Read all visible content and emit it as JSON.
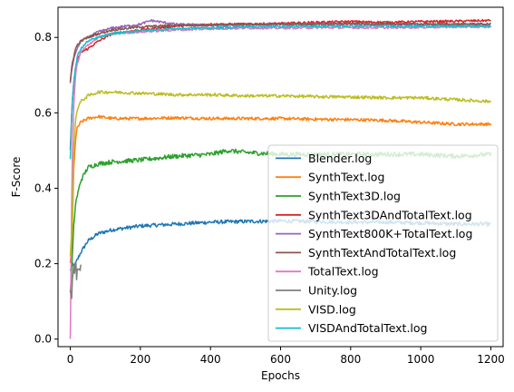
{
  "chart_data": {
    "type": "line",
    "title": "",
    "xlabel": "Epochs",
    "ylabel": "F-Score",
    "xlim": [
      -35,
      1235
    ],
    "ylim": [
      -0.02,
      0.88
    ],
    "xticks": [
      0,
      200,
      400,
      600,
      800,
      1000,
      1200
    ],
    "yticks": [
      0.0,
      0.2,
      0.4,
      0.6,
      0.8
    ],
    "xtick_labels": [
      "0",
      "200",
      "400",
      "600",
      "800",
      "1000",
      "1200"
    ],
    "ytick_labels": [
      "0.0",
      "0.2",
      "0.4",
      "0.6",
      "0.8"
    ],
    "legend_position": "lower-right",
    "grid": false,
    "series": [
      {
        "name": "Blender.log",
        "color": "#1f77b4",
        "noise": 0.005,
        "x": [
          0,
          5,
          10,
          15,
          20,
          30,
          50,
          80,
          120,
          160,
          200,
          300,
          400,
          500,
          600,
          700,
          800,
          900,
          1000,
          1100,
          1200
        ],
        "y": [
          0.18,
          0.2,
          0.19,
          0.2,
          0.21,
          0.23,
          0.26,
          0.28,
          0.29,
          0.295,
          0.3,
          0.305,
          0.31,
          0.312,
          0.313,
          0.312,
          0.31,
          0.31,
          0.308,
          0.305,
          0.305
        ]
      },
      {
        "name": "SynthText.log",
        "color": "#ff7f0e",
        "noise": 0.004,
        "x": [
          0,
          5,
          10,
          15,
          20,
          30,
          50,
          80,
          120,
          200,
          300,
          400,
          500,
          600,
          700,
          800,
          900,
          1000,
          1100,
          1200
        ],
        "y": [
          0.2,
          0.26,
          0.45,
          0.53,
          0.56,
          0.575,
          0.585,
          0.59,
          0.585,
          0.585,
          0.587,
          0.585,
          0.585,
          0.585,
          0.583,
          0.582,
          0.58,
          0.575,
          0.57,
          0.57
        ]
      },
      {
        "name": "SynthText3D.log",
        "color": "#2ca02c",
        "noise": 0.006,
        "x": [
          0,
          5,
          10,
          15,
          20,
          30,
          50,
          80,
          120,
          200,
          300,
          400,
          450,
          500,
          600,
          700,
          800,
          900,
          1000,
          1100,
          1200
        ],
        "y": [
          0.12,
          0.2,
          0.3,
          0.36,
          0.38,
          0.42,
          0.455,
          0.465,
          0.47,
          0.475,
          0.485,
          0.49,
          0.5,
          0.495,
          0.49,
          0.49,
          0.49,
          0.49,
          0.49,
          0.485,
          0.49
        ]
      },
      {
        "name": "SynthText3DAndTotalText.log",
        "color": "#d62728",
        "noise": 0.003,
        "x": [
          0,
          5,
          10,
          15,
          20,
          30,
          50,
          80,
          120,
          200,
          300,
          400,
          500,
          600,
          700,
          800,
          900,
          1000,
          1100,
          1200
        ],
        "y": [
          0.5,
          0.62,
          0.68,
          0.72,
          0.74,
          0.76,
          0.77,
          0.79,
          0.81,
          0.82,
          0.83,
          0.835,
          0.835,
          0.837,
          0.84,
          0.842,
          0.84,
          0.842,
          0.843,
          0.845
        ]
      },
      {
        "name": "SynthText800K+TotalText.log",
        "color": "#9467bd",
        "noise": 0.003,
        "x": [
          0,
          5,
          10,
          15,
          20,
          30,
          50,
          80,
          120,
          160,
          200,
          230,
          300,
          400,
          500,
          600,
          700,
          800,
          900,
          1000,
          1100,
          1200
        ],
        "y": [
          0.68,
          0.72,
          0.74,
          0.76,
          0.77,
          0.79,
          0.8,
          0.815,
          0.825,
          0.83,
          0.835,
          0.845,
          0.835,
          0.832,
          0.833,
          0.835,
          0.835,
          0.836,
          0.835,
          0.835,
          0.835,
          0.835
        ]
      },
      {
        "name": "SynthTextAndTotalText.log",
        "color": "#8c564b",
        "noise": 0.003,
        "x": [
          0,
          5,
          10,
          15,
          20,
          30,
          50,
          80,
          120,
          200,
          300,
          400,
          500,
          600,
          700,
          800,
          900,
          1000,
          1100,
          1200
        ],
        "y": [
          0.68,
          0.73,
          0.75,
          0.77,
          0.78,
          0.79,
          0.8,
          0.81,
          0.82,
          0.828,
          0.832,
          0.833,
          0.835,
          0.835,
          0.835,
          0.836,
          0.835,
          0.835,
          0.835,
          0.835
        ]
      },
      {
        "name": "TotalText.log",
        "color": "#e377c2",
        "noise": 0.003,
        "x": [
          0,
          5,
          10,
          15,
          20,
          30,
          50,
          80,
          120,
          200,
          300,
          400,
          500,
          600,
          700,
          800,
          900,
          1000,
          1100,
          1200
        ],
        "y": [
          0.0,
          0.45,
          0.62,
          0.7,
          0.73,
          0.76,
          0.78,
          0.8,
          0.81,
          0.815,
          0.82,
          0.823,
          0.825,
          0.825,
          0.826,
          0.826,
          0.826,
          0.827,
          0.828,
          0.828
        ]
      },
      {
        "name": "Unity.log",
        "color": "#7f7f7f",
        "noise": 0.01,
        "x": [
          0,
          3,
          6,
          9,
          12,
          15,
          18,
          21,
          25,
          30
        ],
        "y": [
          0.13,
          0.1,
          0.15,
          0.2,
          0.17,
          0.22,
          0.16,
          0.2,
          0.18,
          0.19
        ]
      },
      {
        "name": "VISD.log",
        "color": "#bcbd22",
        "noise": 0.004,
        "x": [
          0,
          5,
          10,
          15,
          20,
          30,
          50,
          80,
          120,
          200,
          300,
          400,
          500,
          600,
          700,
          800,
          900,
          1000,
          1100,
          1200
        ],
        "y": [
          0.22,
          0.3,
          0.5,
          0.58,
          0.61,
          0.63,
          0.645,
          0.655,
          0.655,
          0.652,
          0.648,
          0.648,
          0.645,
          0.645,
          0.643,
          0.642,
          0.64,
          0.64,
          0.635,
          0.63
        ]
      },
      {
        "name": "VISDAndTotalText.log",
        "color": "#17becf",
        "noise": 0.003,
        "x": [
          0,
          5,
          10,
          15,
          20,
          30,
          50,
          80,
          120,
          200,
          300,
          400,
          500,
          600,
          700,
          800,
          900,
          1000,
          1100,
          1200
        ],
        "y": [
          0.48,
          0.62,
          0.68,
          0.72,
          0.75,
          0.77,
          0.79,
          0.8,
          0.81,
          0.818,
          0.823,
          0.826,
          0.828,
          0.829,
          0.83,
          0.83,
          0.83,
          0.83,
          0.83,
          0.83
        ]
      }
    ]
  }
}
